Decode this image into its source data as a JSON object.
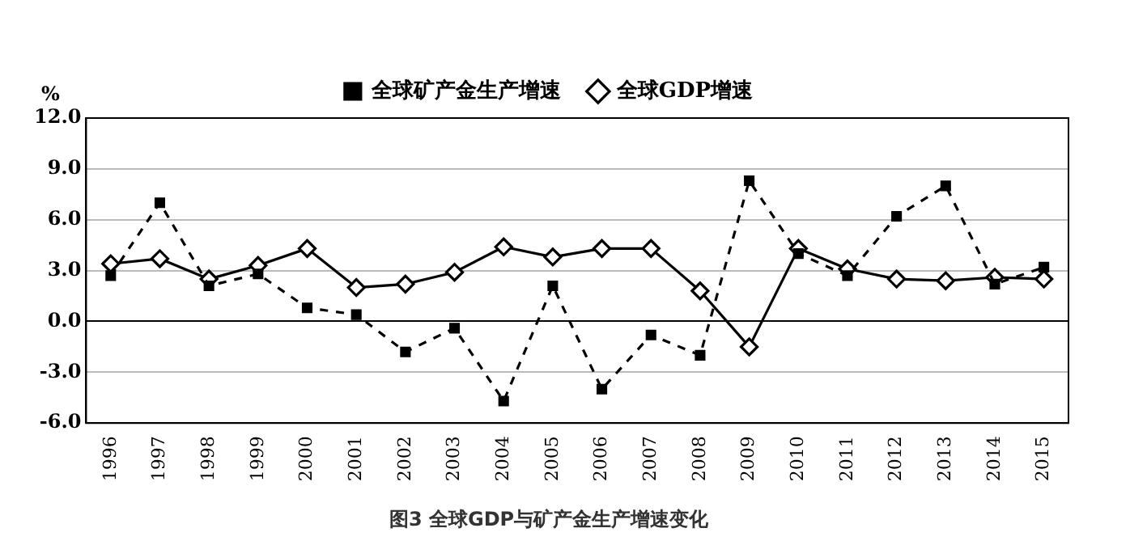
{
  "chart_data": {
    "type": "line",
    "title": "图3 全球GDP与矿产金生产增速变化",
    "ylabel": "%",
    "categories": [
      "1996",
      "1997",
      "1998",
      "1999",
      "2000",
      "2001",
      "2002",
      "2003",
      "2004",
      "2005",
      "2006",
      "2007",
      "2008",
      "2009",
      "2010",
      "2011",
      "2012",
      "2013",
      "2014",
      "2015"
    ],
    "series": [
      {
        "name": "全球GDP增速",
        "color": "#000000",
        "marker": "diamond",
        "line_style": "solid",
        "values": [
          3.4,
          3.7,
          2.5,
          3.3,
          4.3,
          2.0,
          2.2,
          2.9,
          4.4,
          3.8,
          4.3,
          4.3,
          1.8,
          -1.5,
          4.3,
          3.1,
          2.5,
          2.4,
          2.6,
          2.5
        ]
      },
      {
        "name": "全球矿产金生产增速",
        "color": "#000000",
        "marker": "square",
        "line_style": "dashed",
        "values": [
          2.7,
          7.0,
          2.1,
          2.8,
          0.8,
          0.4,
          -1.8,
          -0.4,
          -4.7,
          2.1,
          -4.0,
          -0.8,
          -2.0,
          8.3,
          4.0,
          2.7,
          6.2,
          8.0,
          2.2,
          3.2
        ]
      }
    ],
    "ylim": [
      -6,
      12
    ],
    "yticks": [
      {
        "value": -6,
        "label": "-6.0"
      },
      {
        "value": -3,
        "label": "-3.0"
      },
      {
        "value": 0,
        "label": "0.0"
      },
      {
        "value": 3,
        "label": "3.0"
      },
      {
        "value": 6,
        "label": "6.0"
      },
      {
        "value": 9,
        "label": "9.0"
      },
      {
        "value": 12,
        "label": "12.0"
      }
    ],
    "grid": "y",
    "legend": "top"
  }
}
